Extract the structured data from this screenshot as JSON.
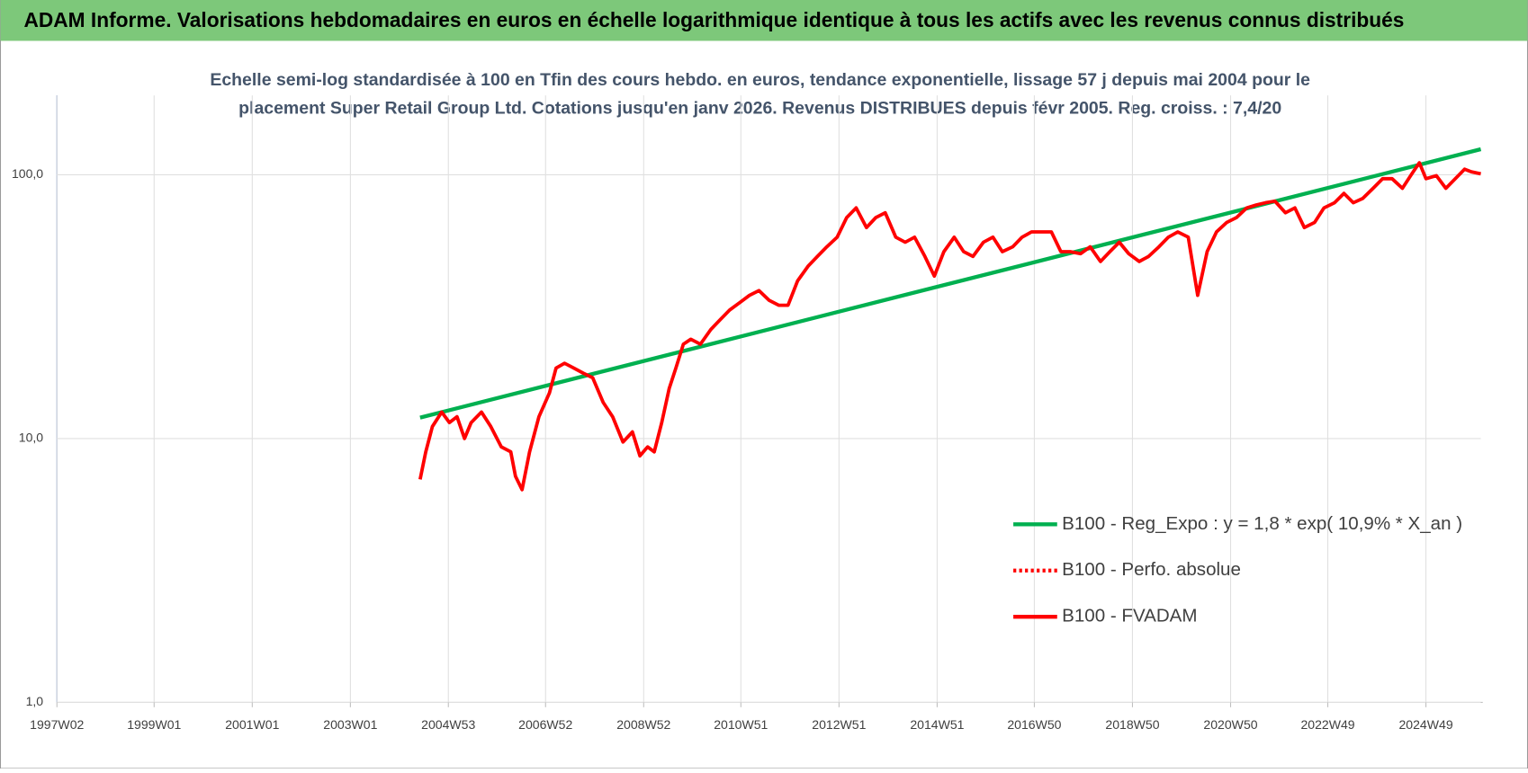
{
  "header": {
    "title": "ADAM Informe. Valorisations hebdomadaires en euros en échelle logarithmique identique à tous les actifs avec les revenus connus distribués"
  },
  "chart_data": {
    "type": "line",
    "subtitle": [
      "Echelle semi-log standardisée à 100 en Tfin des cours hebdo. en euros, tendance exponentielle, lissage 57 j depuis mai 2004 pour le",
      "placement Super Retail Group Ltd. Cotations jusqu'en janv 2026. Revenus DISTRIBUES depuis févr 2005. Reg. croiss. : 7,4/20"
    ],
    "log_y": true,
    "grid": true,
    "legend": "right",
    "xlim": [
      "1997W02",
      "2026W03"
    ],
    "xticks": [
      "1997W02",
      "1999W01",
      "2001W01",
      "2003W01",
      "2004W53",
      "2006W52",
      "2008W52",
      "2010W51",
      "2012W51",
      "2014W51",
      "2016W50",
      "2018W50",
      "2020W50",
      "2022W49",
      "2024W49"
    ],
    "ylim": [
      1,
      200
    ],
    "yticks": [
      {
        "value": 1,
        "label": "1,0"
      },
      {
        "value": 10,
        "label": "10,0"
      },
      {
        "value": 100,
        "label": "100,0"
      }
    ],
    "series": [
      {
        "name": "B100 - Reg_Expo : y = 1,8 * exp( 10,9% *  X_an )",
        "color": "#00b050",
        "x": [
          "2004W23",
          "2026W03"
        ],
        "values": [
          12,
          125
        ]
      },
      {
        "name": "B100 - Perfo. absolue",
        "color": "#ff0000",
        "dash": "dotted",
        "x": [],
        "values": []
      },
      {
        "name": "B100 - FVADAM",
        "color": "#ff0000",
        "x": [
          "2004W23",
          "2004W29",
          "2004W36",
          "2004W46",
          "2005W02",
          "2005W10",
          "2005W18",
          "2005W25",
          "2005W36",
          "2005W46",
          "2006W05",
          "2006W15",
          "2006W20",
          "2006W27",
          "2006W35",
          "2006W45",
          "2007W04",
          "2007W11",
          "2007W20",
          "2007W30",
          "2007W40",
          "2007W50",
          "2008W09",
          "2008W19",
          "2008W30",
          "2008W40",
          "2008W48",
          "2009W04",
          "2009W11",
          "2009W19",
          "2009W27",
          "2009W34",
          "2009W42",
          "2009W50",
          "2010W08",
          "2010W19",
          "2010W29",
          "2010W39",
          "2010W50",
          "2011W08",
          "2011W18",
          "2011W29",
          "2011W39",
          "2011W49",
          "2012W07",
          "2012W18",
          "2012W28",
          "2012W38",
          "2012W49",
          "2013W07",
          "2013W17",
          "2013W28",
          "2013W38",
          "2013W48",
          "2014W07",
          "2014W17",
          "2014W27",
          "2014W38",
          "2014W48",
          "2015W06",
          "2015W17",
          "2015W27",
          "2015W37",
          "2015W48",
          "2016W06",
          "2016W16",
          "2016W27",
          "2016W37",
          "2016W47",
          "2017W05",
          "2017W16",
          "2017W26",
          "2017W36",
          "2017W47",
          "2018W05",
          "2018W16",
          "2018W26",
          "2018W36",
          "2018W46",
          "2019W05",
          "2019W15",
          "2019W26",
          "2019W36",
          "2019W46",
          "2020W05",
          "2020W15",
          "2020W25",
          "2020W35",
          "2020W46",
          "2021W04",
          "2021W15",
          "2021W25",
          "2021W35",
          "2021W45",
          "2022W04",
          "2022W14",
          "2022W24",
          "2022W35",
          "2022W45",
          "2023W04",
          "2023W14",
          "2023W24",
          "2023W34",
          "2023W45",
          "2024W03",
          "2024W13",
          "2024W24",
          "2024W34",
          "2024W42",
          "2024W49",
          "2025W08",
          "2025W18",
          "2025W28",
          "2025W38",
          "2025W45",
          "2026W03"
        ],
        "values": [
          7.0,
          8.9,
          11.1,
          12.6,
          11.5,
          12.1,
          10.0,
          11.5,
          12.6,
          11.1,
          9.3,
          8.9,
          7.2,
          6.4,
          8.9,
          12.1,
          14.9,
          18.5,
          19.3,
          18.5,
          17.7,
          17.0,
          13.7,
          12.1,
          9.7,
          10.6,
          8.6,
          9.3,
          8.9,
          11.5,
          15.5,
          18.5,
          22.8,
          23.8,
          22.8,
          25.9,
          28.2,
          30.7,
          32.8,
          34.9,
          36.4,
          33.4,
          32.0,
          32.0,
          39.6,
          45.0,
          49.0,
          53.3,
          58.0,
          68.8,
          74.9,
          63.1,
          68.8,
          71.8,
          58.0,
          55.5,
          58.0,
          49.0,
          41.3,
          51.1,
          58.0,
          51.1,
          49.0,
          55.5,
          58.0,
          51.1,
          53.3,
          58.0,
          60.7,
          60.7,
          60.7,
          51.1,
          51.1,
          50.2,
          53.3,
          46.9,
          51.1,
          55.5,
          50.2,
          46.9,
          49.0,
          53.3,
          58.0,
          60.7,
          58.0,
          34.9,
          51.1,
          60.7,
          66.0,
          68.8,
          74.9,
          76.8,
          78.3,
          79.4,
          71.8,
          74.9,
          63.1,
          66.0,
          74.9,
          78.3,
          85.0,
          78.3,
          81.3,
          88.8,
          96.6,
          96.6,
          88.8,
          100.8,
          111,
          96.6,
          99.2,
          88.8,
          96.6,
          105.0,
          102.6,
          100.8
        ]
      }
    ]
  }
}
